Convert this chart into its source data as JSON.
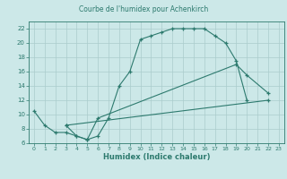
{
  "title": "Courbe de l'humidex pour Achenkirch",
  "xlabel": "Humidex (Indice chaleur)",
  "bg_color": "#cce8e8",
  "grid_color": "#aacccc",
  "line_color": "#2d7a6e",
  "xlim": [
    -0.5,
    23.5
  ],
  "ylim": [
    6,
    23
  ],
  "xticks": [
    0,
    1,
    2,
    3,
    4,
    5,
    6,
    7,
    8,
    9,
    10,
    11,
    12,
    13,
    14,
    15,
    16,
    17,
    18,
    19,
    20,
    21,
    22,
    23
  ],
  "yticks": [
    6,
    8,
    10,
    12,
    14,
    16,
    18,
    20,
    22
  ],
  "line1_x": [
    0,
    1,
    2,
    3,
    4,
    5,
    6,
    7,
    8,
    9,
    10,
    11,
    12,
    13,
    14,
    15,
    16,
    17,
    18,
    19,
    20
  ],
  "line1_y": [
    10.5,
    8.5,
    7.5,
    7.5,
    7.0,
    6.5,
    7.0,
    9.5,
    14.0,
    16.0,
    20.5,
    21.0,
    21.5,
    22.0,
    22.0,
    22.0,
    22.0,
    21.0,
    20.0,
    17.5,
    12.0
  ],
  "line2_x": [
    3,
    4,
    5,
    6,
    19,
    20,
    22
  ],
  "line2_y": [
    8.5,
    7.0,
    6.5,
    9.5,
    17.0,
    15.5,
    13.0
  ],
  "line3_x": [
    3,
    22
  ],
  "line3_y": [
    8.5,
    12.0
  ]
}
